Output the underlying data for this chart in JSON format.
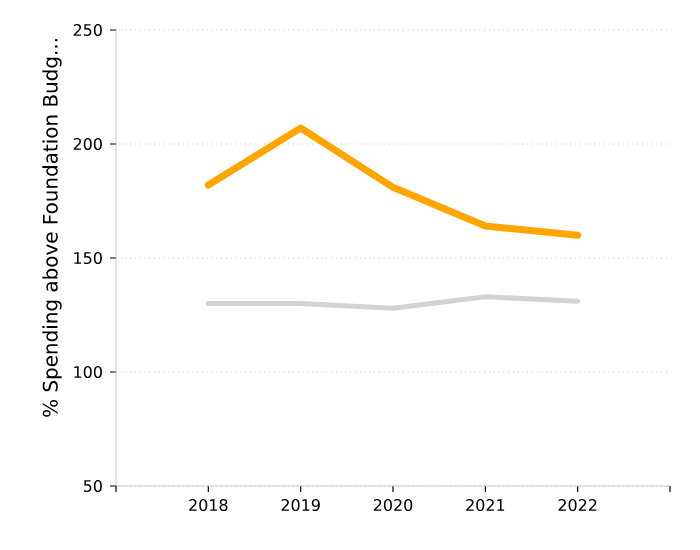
{
  "chart_data": {
    "type": "line",
    "ylabel": "% Spending above Foundation Budg...",
    "categories": [
      "2018",
      "2019",
      "2020",
      "2021",
      "2022"
    ],
    "series": [
      {
        "color": "#ffa500",
        "values": [
          182,
          207,
          181,
          164,
          160
        ]
      },
      {
        "color": "#d3d3d3",
        "values": [
          130,
          130,
          128,
          133,
          131
        ]
      }
    ],
    "ylim": [
      50,
      250
    ],
    "yticks": [
      50,
      100,
      150,
      200,
      250
    ],
    "grid": "y",
    "marker": "none",
    "line_style": "solid"
  }
}
